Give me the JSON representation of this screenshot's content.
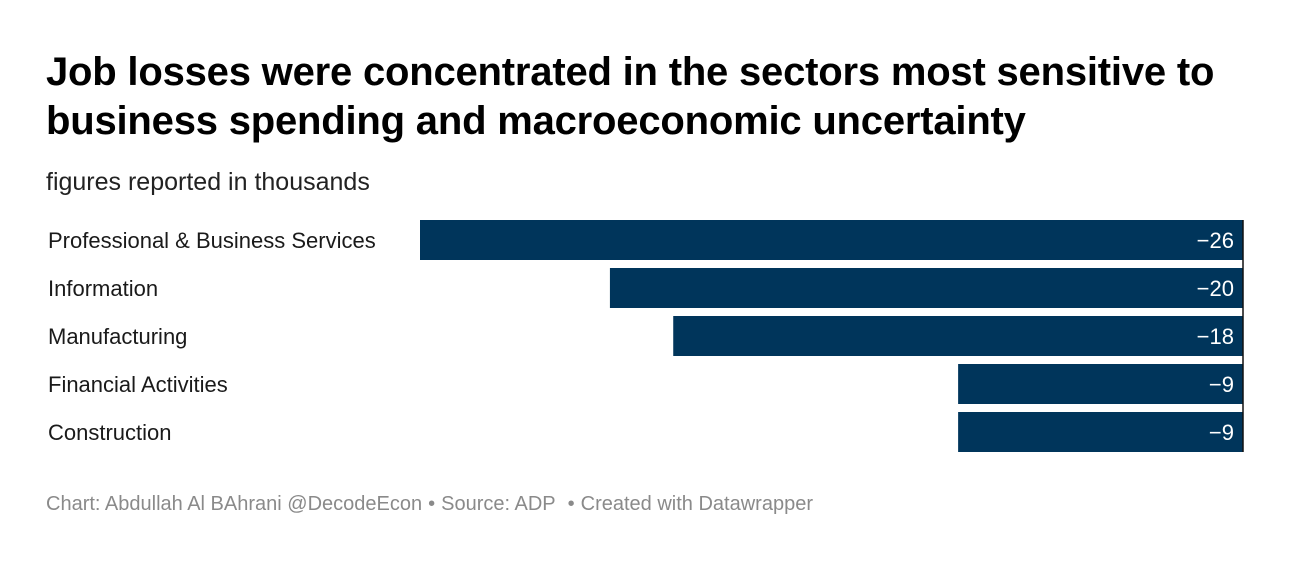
{
  "chart_data": {
    "type": "bar",
    "orientation": "horizontal",
    "title": "Job losses were concentrated in the sectors most sensitive to business spending and macroeconomic uncertainty",
    "subtitle": "figures reported in thousands",
    "categories": [
      "Professional & Business Services",
      "Information",
      "Manufacturing",
      "Financial Activities",
      "Construction"
    ],
    "values": [
      -26,
      -20,
      -18,
      -9,
      -9
    ],
    "value_labels": [
      "−26",
      "−20",
      "−18",
      "−9",
      "−9"
    ],
    "xlim": [
      -26,
      0
    ],
    "bar_color": "#00355b",
    "grid": false,
    "legend": "none"
  },
  "footer": {
    "chart_credit": "Chart: Abdullah Al BAhrani @DecodeEcon",
    "source": "Source: ADP",
    "created_with": "Created with Datawrapper",
    "separator": "•"
  },
  "colors": {
    "bar": "#00355b",
    "title": "#000000",
    "footer": "#8a8a8a"
  }
}
